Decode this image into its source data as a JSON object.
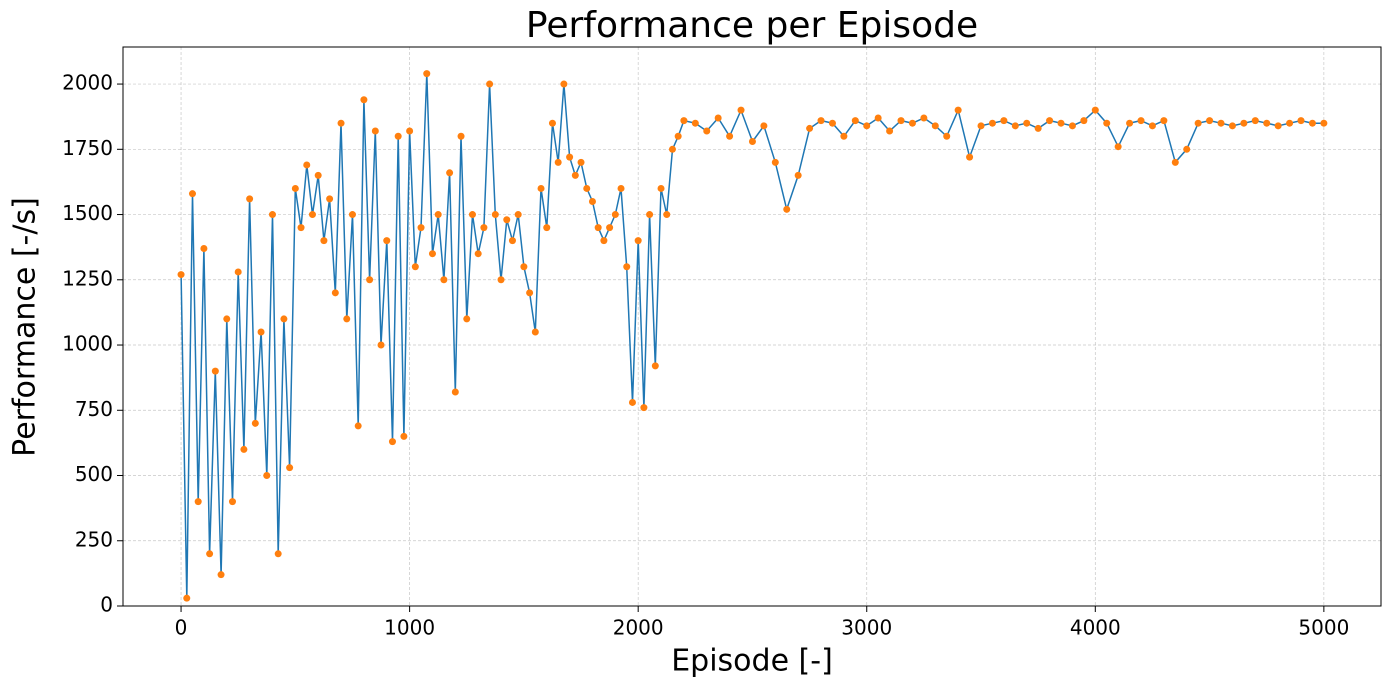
{
  "chart_data": {
    "type": "line",
    "title": "Performance per Episode",
    "xlabel": "Episode [-]",
    "ylabel": "Performance [-/s]",
    "line_color": "#1f77b4",
    "marker_color": "#ff7f0e",
    "grid": true,
    "xlim": [
      -254,
      5250
    ],
    "ylim": [
      0,
      2142
    ],
    "xticks": [
      0,
      1000,
      2000,
      3000,
      4000,
      5000
    ],
    "yticks": [
      0,
      250,
      500,
      750,
      1000,
      1250,
      1500,
      1750,
      2000
    ],
    "x": [
      0,
      25,
      50,
      75,
      100,
      125,
      150,
      175,
      200,
      225,
      250,
      275,
      300,
      325,
      350,
      375,
      400,
      425,
      450,
      475,
      500,
      525,
      550,
      575,
      600,
      625,
      650,
      675,
      700,
      725,
      750,
      775,
      800,
      825,
      850,
      875,
      900,
      925,
      950,
      975,
      1000,
      1025,
      1050,
      1075,
      1100,
      1125,
      1150,
      1175,
      1200,
      1225,
      1250,
      1275,
      1300,
      1325,
      1350,
      1375,
      1400,
      1425,
      1450,
      1475,
      1500,
      1525,
      1550,
      1575,
      1600,
      1625,
      1650,
      1675,
      1700,
      1725,
      1750,
      1775,
      1800,
      1825,
      1850,
      1875,
      1900,
      1925,
      1950,
      1975,
      2000,
      2025,
      2050,
      2075,
      2100,
      2125,
      2150,
      2175,
      2200,
      2250,
      2300,
      2350,
      2400,
      2450,
      2500,
      2550,
      2600,
      2650,
      2700,
      2750,
      2800,
      2850,
      2900,
      2950,
      3000,
      3050,
      3100,
      3150,
      3200,
      3250,
      3300,
      3350,
      3400,
      3450,
      3500,
      3550,
      3600,
      3650,
      3700,
      3750,
      3800,
      3850,
      3900,
      3950,
      4000,
      4050,
      4100,
      4150,
      4200,
      4250,
      4300,
      4350,
      4400,
      4450,
      4500,
      4550,
      4600,
      4650,
      4700,
      4750,
      4800,
      4850,
      4900,
      4950,
      5000
    ],
    "values": [
      1270,
      30,
      1580,
      400,
      1370,
      200,
      900,
      120,
      1100,
      400,
      1280,
      600,
      1560,
      700,
      1050,
      500,
      1500,
      200,
      1100,
      530,
      1600,
      1450,
      1690,
      1500,
      1650,
      1400,
      1560,
      1200,
      1850,
      1100,
      1500,
      690,
      1940,
      1250,
      1820,
      1000,
      1400,
      630,
      1800,
      650,
      1820,
      1300,
      1450,
      2040,
      1350,
      1500,
      1250,
      1660,
      820,
      1800,
      1100,
      1500,
      1350,
      1450,
      2000,
      1500,
      1250,
      1480,
      1400,
      1500,
      1300,
      1200,
      1050,
      1600,
      1450,
      1850,
      1700,
      2000,
      1720,
      1650,
      1700,
      1600,
      1550,
      1450,
      1400,
      1450,
      1500,
      1600,
      1300,
      780,
      1400,
      760,
      1500,
      920,
      1600,
      1500,
      1750,
      1800,
      1860,
      1850,
      1820,
      1870,
      1800,
      1900,
      1780,
      1840,
      1700,
      1520,
      1650,
      1830,
      1860,
      1850,
      1800,
      1860,
      1840,
      1870,
      1820,
      1860,
      1850,
      1870,
      1840,
      1800,
      1900,
      1720,
      1840,
      1850,
      1860,
      1840,
      1850,
      1830,
      1860,
      1850,
      1840,
      1860,
      1900,
      1850,
      1760,
      1850,
      1860,
      1840,
      1860,
      1700,
      1750,
      1850,
      1860,
      1850,
      1840,
      1850,
      1860,
      1850,
      1840,
      1850,
      1860,
      1850,
      1850
    ]
  }
}
